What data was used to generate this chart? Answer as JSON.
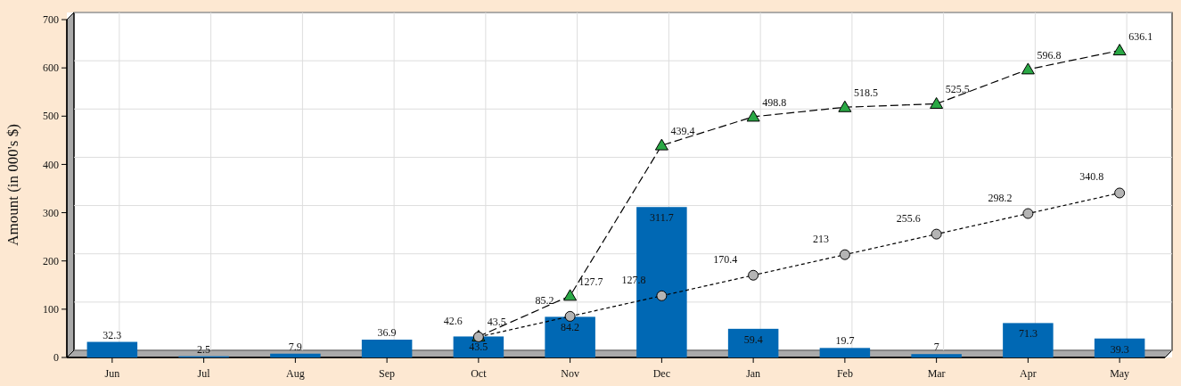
{
  "chart_data": {
    "type": "bar",
    "ylabel": "Amount (in 000's $)",
    "categories": [
      "Jun",
      "Jul",
      "Aug",
      "Sep",
      "Oct",
      "Nov",
      "Dec",
      "Jan",
      "Feb",
      "Mar",
      "Apr",
      "May"
    ],
    "ylim": [
      0,
      700
    ],
    "yticks": [
      0,
      100,
      200,
      300,
      400,
      500,
      600,
      700
    ],
    "grid": true,
    "data_labels": true,
    "series": [
      {
        "color": "#0068b4",
        "values": [
          32.3,
          2.5,
          7.9,
          36.9,
          43.5,
          84.2,
          311.7,
          59.4,
          19.7,
          7,
          71.3,
          39.3
        ]
      },
      {
        "type": "line",
        "color": "#2aa845",
        "marker": "triangle",
        "line_style": "dashed",
        "values": [
          null,
          null,
          null,
          null,
          43.5,
          127.7,
          439.4,
          498.8,
          518.5,
          525.5,
          596.8,
          636.1
        ]
      },
      {
        "type": "line",
        "color": "#b4b4b4",
        "marker": "circle",
        "line_style": "dotted",
        "values": [
          null,
          null,
          null,
          null,
          42.6,
          85.2,
          127.8,
          170.4,
          213,
          255.6,
          298.2,
          340.8
        ]
      }
    ]
  }
}
